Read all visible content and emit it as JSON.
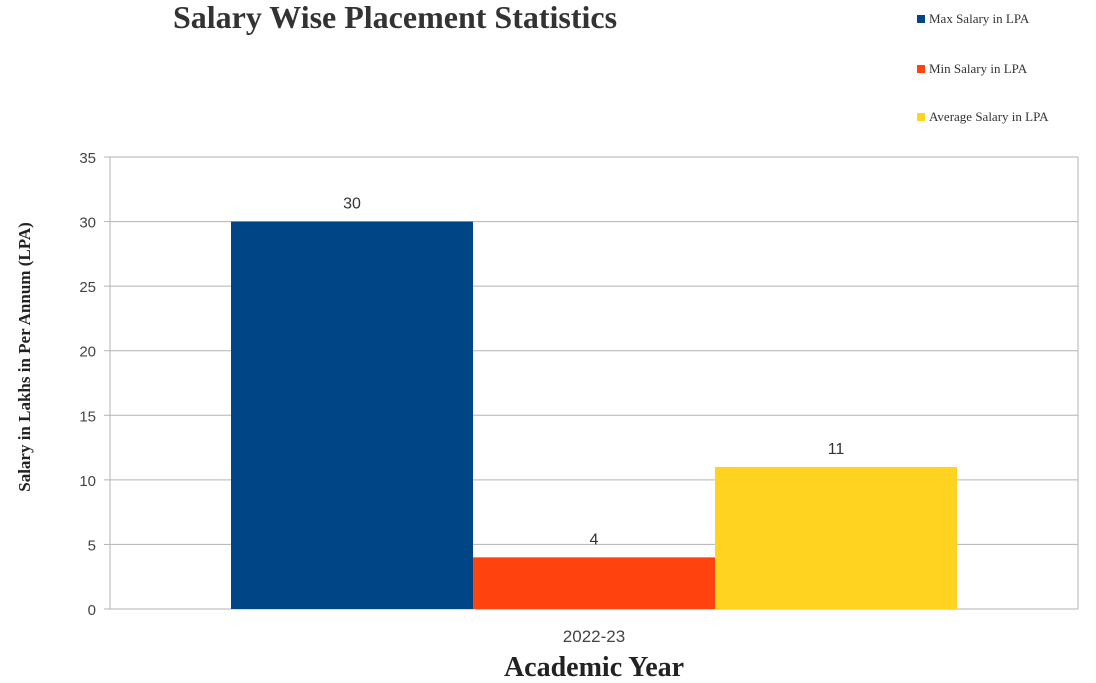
{
  "chart_data": {
    "type": "bar",
    "title": "Salary Wise Placement Statistics",
    "xlabel": "Academic Year",
    "ylabel": "Salary in Lakhs in Per Annum (LPA)",
    "categories": [
      "2022-23"
    ],
    "series": [
      {
        "name": "Max Salary in LPA",
        "values": [
          30
        ],
        "color": "#004586"
      },
      {
        "name": "Min Salary in LPA",
        "values": [
          4
        ],
        "color": "#ff420e"
      },
      {
        "name": "Average Salary in LPA",
        "values": [
          11
        ],
        "color": "#ffd320"
      }
    ],
    "ylim": [
      0,
      35
    ],
    "yticks": [
      0,
      5,
      10,
      15,
      20,
      25,
      30,
      35
    ],
    "grid": true,
    "legend_position": "top-right",
    "data_labels": true
  }
}
